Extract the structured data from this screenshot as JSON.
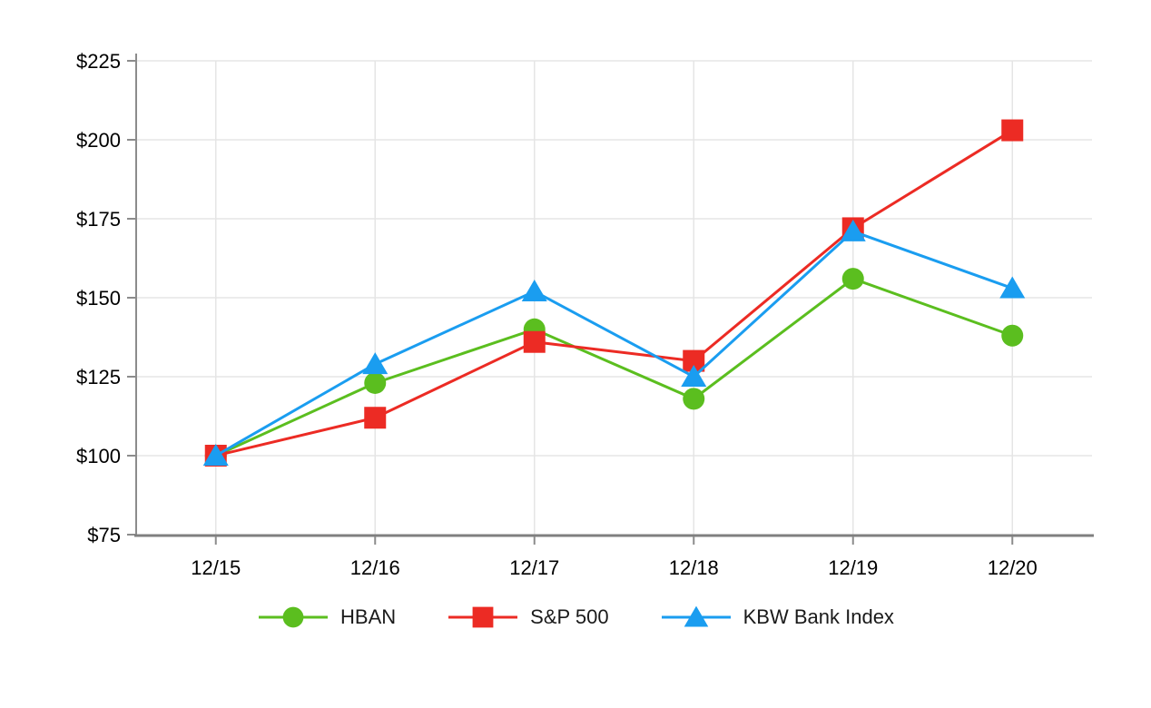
{
  "chart_data": {
    "type": "line",
    "title": "",
    "categories": [
      "12/15",
      "12/16",
      "12/17",
      "12/18",
      "12/19",
      "12/20"
    ],
    "series": [
      {
        "name": "HBAN",
        "marker": "circle",
        "color": "#5BBE1F",
        "values": [
          100,
          123,
          140,
          118,
          156,
          138
        ]
      },
      {
        "name": "S&P 500",
        "marker": "square",
        "color": "#EC2B24",
        "values": [
          100,
          112,
          136,
          130,
          172,
          203
        ]
      },
      {
        "name": "KBW Bank Index",
        "marker": "triangle",
        "color": "#1A9DF0",
        "values": [
          100,
          129,
          152,
          125,
          171,
          153
        ]
      }
    ],
    "y_axis": {
      "min": 75,
      "max": 225,
      "step": 25,
      "tick_labels": [
        "$75",
        "$100",
        "$125",
        "$150",
        "$175",
        "$200",
        "$225"
      ]
    },
    "x_axis": {
      "tick_labels": [
        "12/15",
        "12/16",
        "12/17",
        "12/18",
        "12/19",
        "12/20"
      ]
    },
    "grid": true,
    "legend_position": "bottom"
  },
  "style": {
    "grid_color": "#E5E5E5",
    "axis_color_left": "#8C8C8C",
    "axis_color_bottom": "#7F7F7F",
    "tick_color": "#8C8C8C",
    "text_color": "#000000",
    "background": "#FFFFFF"
  }
}
